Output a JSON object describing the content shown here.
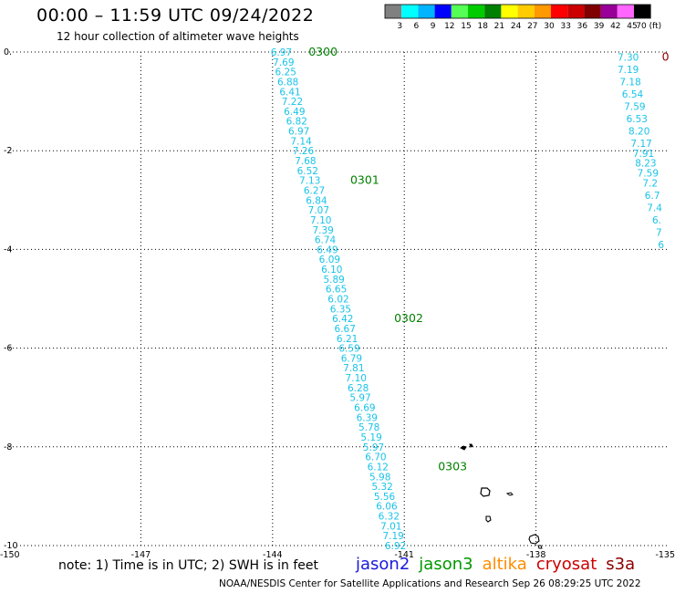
{
  "title": "00:00 – 11:59 UTC 09/24/2022",
  "subtitle": "12 hour collection of altimeter wave heights",
  "footer_note": "note: 1) Time is in UTC; 2) SWH is in feet",
  "credit": "NOAA/NESDIS Center for Satellite Applications and Research  Sep 26 08:29:25 UTC 2022",
  "satellites": [
    {
      "name": "jason2",
      "color": "#1a1adb"
    },
    {
      "name": "jason3",
      "color": "#009900"
    },
    {
      "name": "altika",
      "color": "#ff8c00"
    },
    {
      "name": "cryosat",
      "color": "#cc0000"
    },
    {
      "name": "s3a",
      "color": "#8b0000"
    }
  ],
  "colorbar": {
    "labels": [
      "3",
      "6",
      "9",
      "12",
      "15",
      "18",
      "21",
      "24",
      "27",
      "30",
      "33",
      "36",
      "39",
      "42",
      "45",
      "70 (ft)"
    ],
    "colors": [
      "#808080",
      "#00ffff",
      "#00b4ff",
      "#0000ff",
      "#55ff55",
      "#00cc00",
      "#008000",
      "#ffff00",
      "#ffcc00",
      "#ff9900",
      "#ff0000",
      "#cc0000",
      "#800000",
      "#990099",
      "#ff66ff",
      "#000000"
    ]
  },
  "map": {
    "lon_ticks": [
      "-150",
      "-147",
      "-144",
      "-141",
      "-138",
      "-135"
    ],
    "lat_ticks": [
      "0.",
      "-2",
      "-4",
      "-6",
      "-8",
      "-10"
    ],
    "lon_range": [
      -150,
      -135
    ],
    "lat_range": [
      -10,
      0
    ],
    "swh_color": "#19c3e8",
    "time_color": "#008000"
  },
  "tracks": [
    {
      "id": "main",
      "points": [
        {
          "lon": -143.8,
          "lat": 0.0,
          "swh": "6.97"
        },
        {
          "lon": -143.75,
          "lat": -0.2,
          "swh": "7.69"
        },
        {
          "lon": -143.7,
          "lat": -0.4,
          "swh": "6.25"
        },
        {
          "lon": -143.65,
          "lat": -0.6,
          "swh": "6.88"
        },
        {
          "lon": -143.6,
          "lat": -0.8,
          "swh": "6.41"
        },
        {
          "lon": -143.55,
          "lat": -1.0,
          "swh": "7.22"
        },
        {
          "lon": -143.5,
          "lat": -1.2,
          "swh": "6.49"
        },
        {
          "lon": -143.45,
          "lat": -1.4,
          "swh": "6.82"
        },
        {
          "lon": -143.4,
          "lat": -1.6,
          "swh": "6.97"
        },
        {
          "lon": -143.35,
          "lat": -1.8,
          "swh": "7.14"
        },
        {
          "lon": -143.3,
          "lat": -2.0,
          "swh": "7.26"
        },
        {
          "lon": -143.25,
          "lat": -2.2,
          "swh": "7.68"
        },
        {
          "lon": -143.2,
          "lat": -2.4,
          "swh": "6.52"
        },
        {
          "lon": -143.15,
          "lat": -2.6,
          "swh": "7.13"
        },
        {
          "lon": -143.05,
          "lat": -2.8,
          "swh": "6.27"
        },
        {
          "lon": -143.0,
          "lat": -3.0,
          "swh": "6.84"
        },
        {
          "lon": -142.95,
          "lat": -3.2,
          "swh": "7.07"
        },
        {
          "lon": -142.9,
          "lat": -3.4,
          "swh": "7.10"
        },
        {
          "lon": -142.85,
          "lat": -3.6,
          "swh": "7.39"
        },
        {
          "lon": -142.8,
          "lat": -3.8,
          "swh": "6.74"
        },
        {
          "lon": -142.75,
          "lat": -4.0,
          "swh": "6.49"
        },
        {
          "lon": -142.7,
          "lat": -4.2,
          "swh": "6.09"
        },
        {
          "lon": -142.65,
          "lat": -4.4,
          "swh": "6.10"
        },
        {
          "lon": -142.6,
          "lat": -4.6,
          "swh": "5.89"
        },
        {
          "lon": -142.55,
          "lat": -4.8,
          "swh": "6.65"
        },
        {
          "lon": -142.5,
          "lat": -5.0,
          "swh": "6.02"
        },
        {
          "lon": -142.45,
          "lat": -5.2,
          "swh": "6.35"
        },
        {
          "lon": -142.4,
          "lat": -5.4,
          "swh": "6.42"
        },
        {
          "lon": -142.35,
          "lat": -5.6,
          "swh": "6.67"
        },
        {
          "lon": -142.3,
          "lat": -5.8,
          "swh": "6.21"
        },
        {
          "lon": -142.25,
          "lat": -6.0,
          "swh": "6.59"
        },
        {
          "lon": -142.2,
          "lat": -6.2,
          "swh": "6.79"
        },
        {
          "lon": -142.15,
          "lat": -6.4,
          "swh": "7.81"
        },
        {
          "lon": -142.1,
          "lat": -6.6,
          "swh": "7.10"
        },
        {
          "lon": -142.05,
          "lat": -6.8,
          "swh": "6.28"
        },
        {
          "lon": -142.0,
          "lat": -7.0,
          "swh": "5.97"
        },
        {
          "lon": -141.9,
          "lat": -7.2,
          "swh": "6.69"
        },
        {
          "lon": -141.85,
          "lat": -7.4,
          "swh": "6.39"
        },
        {
          "lon": -141.8,
          "lat": -7.6,
          "swh": "5.78"
        },
        {
          "lon": -141.75,
          "lat": -7.8,
          "swh": "5.19"
        },
        {
          "lon": -141.7,
          "lat": -8.0,
          "swh": "5.97"
        },
        {
          "lon": -141.65,
          "lat": -8.2,
          "swh": "6.70"
        },
        {
          "lon": -141.6,
          "lat": -8.4,
          "swh": "6.12"
        },
        {
          "lon": -141.55,
          "lat": -8.6,
          "swh": "5.98"
        },
        {
          "lon": -141.5,
          "lat": -8.8,
          "swh": "5.32"
        },
        {
          "lon": -141.45,
          "lat": -9.0,
          "swh": "5.56"
        },
        {
          "lon": -141.4,
          "lat": -9.2,
          "swh": "6.06"
        },
        {
          "lon": -141.35,
          "lat": -9.4,
          "swh": "6.32"
        },
        {
          "lon": -141.3,
          "lat": -9.6,
          "swh": "7.01"
        },
        {
          "lon": -141.25,
          "lat": -9.8,
          "swh": "7.19"
        },
        {
          "lon": -141.2,
          "lat": -10.0,
          "swh": "6.92"
        }
      ],
      "times": [
        {
          "lon": -142.85,
          "lat": 0.0,
          "label": "0300"
        },
        {
          "lon": -141.9,
          "lat": -2.6,
          "label": "0301"
        },
        {
          "lon": -140.9,
          "lat": -5.4,
          "label": "0302"
        },
        {
          "lon": -139.9,
          "lat": -8.4,
          "label": "0303"
        }
      ]
    },
    {
      "id": "east",
      "points": [
        {
          "lon": -135.9,
          "lat": -0.1,
          "swh": "7.30"
        },
        {
          "lon": -135.9,
          "lat": -0.35,
          "swh": "7.19"
        },
        {
          "lon": -135.85,
          "lat": -0.6,
          "swh": "7.18"
        },
        {
          "lon": -135.8,
          "lat": -0.85,
          "swh": "6.54"
        },
        {
          "lon": -135.75,
          "lat": -1.1,
          "swh": "7.59"
        },
        {
          "lon": -135.7,
          "lat": -1.35,
          "swh": "6.53"
        },
        {
          "lon": -135.65,
          "lat": -1.6,
          "swh": "8.20"
        },
        {
          "lon": -135.6,
          "lat": -1.85,
          "swh": "7.17"
        },
        {
          "lon": -135.55,
          "lat": -2.05,
          "swh": "7.91"
        },
        {
          "lon": -135.5,
          "lat": -2.25,
          "swh": "8.23"
        },
        {
          "lon": -135.45,
          "lat": -2.45,
          "swh": "7.59"
        },
        {
          "lon": -135.4,
          "lat": -2.65,
          "swh": "7.2"
        },
        {
          "lon": -135.35,
          "lat": -2.9,
          "swh": "6.7"
        },
        {
          "lon": -135.3,
          "lat": -3.15,
          "swh": "7.4"
        },
        {
          "lon": -135.25,
          "lat": -3.4,
          "swh": "6."
        },
        {
          "lon": -135.2,
          "lat": -3.65,
          "swh": "7"
        },
        {
          "lon": -135.15,
          "lat": -3.9,
          "swh": "6"
        }
      ],
      "times": [
        {
          "lon": -135.05,
          "lat": -0.1,
          "label": "0"
        }
      ]
    }
  ]
}
